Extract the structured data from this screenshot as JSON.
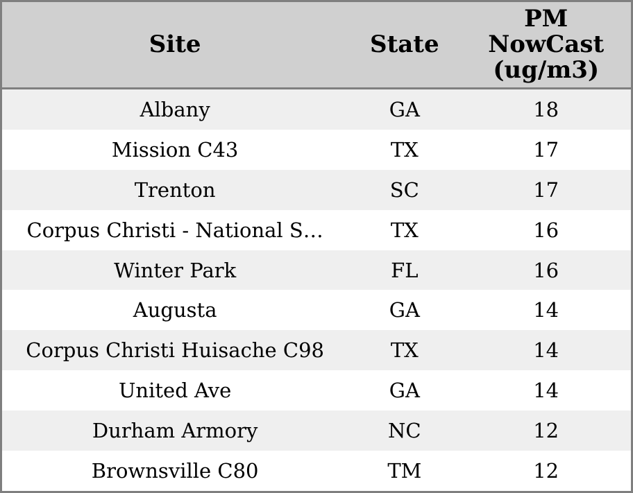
{
  "table": {
    "columns": [
      {
        "id": "site",
        "label": "Site"
      },
      {
        "id": "state",
        "label": "State"
      },
      {
        "id": "pm",
        "label": "PM\nNowCast\n(ug/m3)"
      }
    ],
    "rows": [
      {
        "site": "Albany",
        "state": "GA",
        "pm": "18"
      },
      {
        "site": "Mission C43",
        "state": "TX",
        "pm": "17"
      },
      {
        "site": "Trenton",
        "state": "SC",
        "pm": "17"
      },
      {
        "site": "Corpus Christi - National S…",
        "state": "TX",
        "pm": "16"
      },
      {
        "site": "Winter Park",
        "state": "FL",
        "pm": "16"
      },
      {
        "site": "Augusta",
        "state": "GA",
        "pm": "14"
      },
      {
        "site": "Corpus Christi Huisache C98",
        "state": "TX",
        "pm": "14"
      },
      {
        "site": "United Ave",
        "state": "GA",
        "pm": "14"
      },
      {
        "site": "Durham Armory",
        "state": "NC",
        "pm": "12"
      },
      {
        "site": "Brownsville C80",
        "state": "TM",
        "pm": "12"
      }
    ],
    "colors": {
      "header_bg": "#d0d0d0",
      "row_alt_bg": "#efefef",
      "row_bg": "#ffffff",
      "border": "#7f7f7f",
      "text": "#000000"
    }
  }
}
